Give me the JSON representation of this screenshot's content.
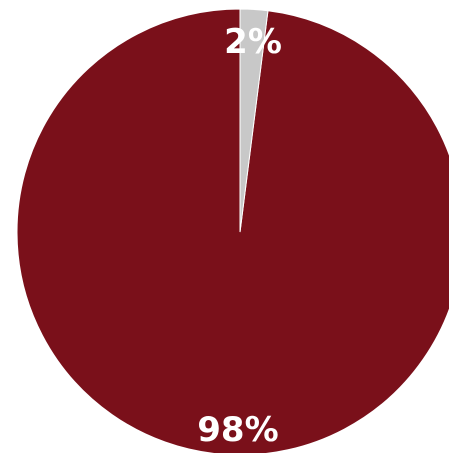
{
  "chart_data": {
    "type": "pie",
    "slices": [
      {
        "label": "98%",
        "value": 98,
        "color": "#7a101a"
      },
      {
        "label": "2%",
        "value": 2,
        "color": "#c8c8c8"
      }
    ],
    "title": "",
    "legend": "none"
  }
}
